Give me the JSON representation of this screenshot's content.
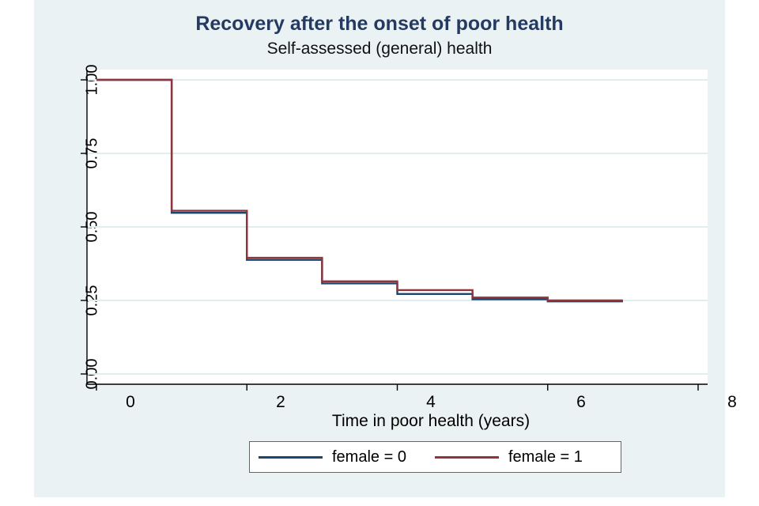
{
  "figure": {
    "background_color": "#eaf2f3",
    "plot_background_color": "#ffffff",
    "gridline_color": "#e2edef",
    "axis_color": "#000000"
  },
  "title": {
    "text": "Recovery after the onset of poor health",
    "color": "#253a62"
  },
  "subtitle": {
    "text": "Self-assessed (general) health"
  },
  "axes": {
    "x": {
      "label": "Time in poor health (years)",
      "tick_labels": [
        "0",
        "2",
        "4",
        "6",
        "8"
      ],
      "tick_values": [
        0,
        2,
        4,
        6,
        8
      ],
      "range": [
        0,
        8
      ]
    },
    "y": {
      "label": "",
      "tick_labels": [
        "1.00",
        "0.75",
        "0.50",
        "0.25",
        "0.00"
      ],
      "tick_values": [
        1.0,
        0.75,
        0.5,
        0.25,
        0.0
      ],
      "range": [
        0,
        1
      ]
    }
  },
  "legend": {
    "position": "bottom",
    "items": [
      {
        "label": "female = 0",
        "color": "#1a476f"
      },
      {
        "label": "female = 1",
        "color": "#90353b"
      }
    ]
  },
  "chart_data": {
    "type": "line",
    "subtype": "kaplan-meier-step",
    "title": "Recovery after the onset of poor health",
    "subtitle": "Self-assessed (general) health",
    "xlabel": "Time in poor health (years)",
    "ylabel": "",
    "xlim": [
      0,
      8
    ],
    "ylim": [
      0,
      1
    ],
    "xticks": [
      0,
      2,
      4,
      6,
      8
    ],
    "yticks": [
      0.0,
      0.25,
      0.5,
      0.75,
      1.0
    ],
    "grid": "horizontal",
    "legend_position": "bottom",
    "series": [
      {
        "name": "female = 0",
        "color": "#1a476f",
        "step_times": [
          0,
          1,
          2,
          3,
          4,
          5,
          6
        ],
        "step_values": [
          1.0,
          0.548,
          0.388,
          0.308,
          0.272,
          0.254,
          0.247
        ],
        "end_time": 7
      },
      {
        "name": "female = 1",
        "color": "#90353b",
        "step_times": [
          0,
          1,
          2,
          3,
          4,
          5,
          6
        ],
        "step_values": [
          1.0,
          0.555,
          0.395,
          0.315,
          0.285,
          0.26,
          0.25
        ],
        "end_time": 7
      }
    ]
  }
}
